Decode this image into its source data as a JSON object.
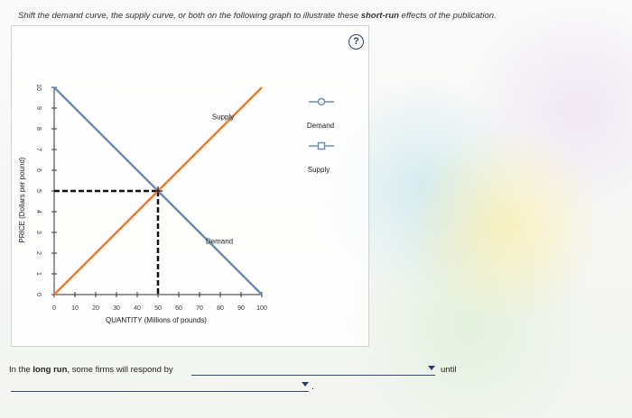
{
  "instruction": {
    "before": "Shift the demand curve, the supply curve, or both on the following graph to illustrate these ",
    "bold": "short-run",
    "after": " effects of the publication."
  },
  "help_button": {
    "label": "?"
  },
  "chart_data": {
    "type": "line",
    "xlabel": "QUANTITY (Millions of pounds)",
    "ylabel": "PRICE (Dollars per pound)",
    "xlim": [
      0,
      100
    ],
    "ylim": [
      0,
      10
    ],
    "x_ticks": [
      "0",
      "10",
      "20",
      "30",
      "40",
      "50",
      "60",
      "70",
      "80",
      "90",
      "100"
    ],
    "y_ticks": [
      "0",
      "1",
      "2",
      "3",
      "4",
      "5",
      "6",
      "7",
      "8",
      "9",
      "10"
    ],
    "series": [
      {
        "name": "Demand",
        "color": "#6f8db4",
        "points": [
          [
            0,
            10
          ],
          [
            100,
            0
          ]
        ]
      },
      {
        "name": "Supply",
        "color": "#f07c2a",
        "points": [
          [
            0,
            0
          ],
          [
            100,
            10
          ]
        ]
      }
    ],
    "equilibrium": {
      "x": 50,
      "y": 5
    },
    "curve_labels": {
      "supply": "Supply",
      "demand": "Demand"
    }
  },
  "legend": {
    "items": [
      {
        "label": "Demand",
        "icon": "circle-handle-icon",
        "color": "#6f8db4"
      },
      {
        "label": "Supply",
        "icon": "square-handle-icon",
        "color": "#6f8db4"
      }
    ]
  },
  "question": {
    "text_before": "In the ",
    "bold": "long run",
    "text_after": ", some firms will respond by",
    "until": "until",
    "dropdown1_value": "",
    "dropdown2_value": "",
    "period": "."
  }
}
